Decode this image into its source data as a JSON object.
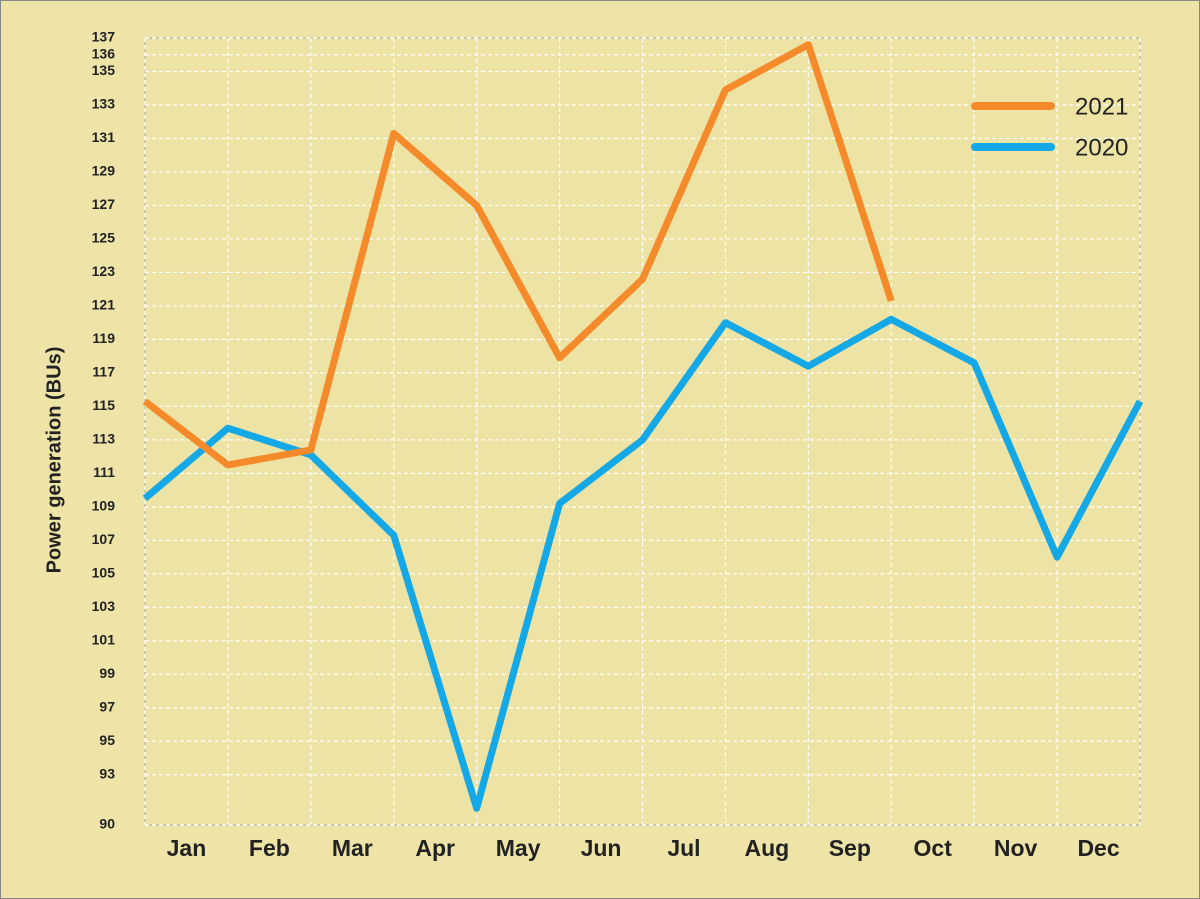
{
  "chart_data": {
    "type": "line",
    "y_label": "Power generation (BUs)",
    "x": [
      0,
      1,
      2,
      3,
      4,
      5,
      6,
      7,
      8,
      9,
      10,
      11,
      12
    ],
    "xlim": [
      0,
      12
    ],
    "xticks": [
      {
        "value": 0.5,
        "label": "Jan"
      },
      {
        "value": 1.5,
        "label": "Feb"
      },
      {
        "value": 2.5,
        "label": "Mar"
      },
      {
        "value": 3.5,
        "label": "Apr"
      },
      {
        "value": 4.5,
        "label": "May"
      },
      {
        "value": 5.5,
        "label": "Jun"
      },
      {
        "value": 6.5,
        "label": "Jul"
      },
      {
        "value": 7.5,
        "label": "Aug"
      },
      {
        "value": 8.5,
        "label": "Sep"
      },
      {
        "value": 9.5,
        "label": "Oct"
      },
      {
        "value": 10.5,
        "label": "Nov"
      },
      {
        "value": 11.5,
        "label": "Dec"
      }
    ],
    "ylim": [
      90,
      137
    ],
    "yticks": [
      90,
      93,
      95,
      97,
      99,
      101,
      103,
      105,
      107,
      109,
      111,
      113,
      115,
      117,
      119,
      121,
      123,
      125,
      127,
      129,
      131,
      133,
      135,
      136,
      137
    ],
    "grid": true,
    "legend": "upper right",
    "series": [
      {
        "name": "2021",
        "color": "#f58a2b",
        "values": [
          115.3,
          111.5,
          112.4,
          131.3,
          127,
          117.9,
          122.6,
          133.9,
          136.6,
          121.3,
          null,
          null,
          null
        ]
      },
      {
        "name": "2020",
        "color": "#14a8e6",
        "values": [
          109.5,
          113.7,
          112.1,
          107.3,
          91,
          109.2,
          113,
          120,
          117.4,
          120.2,
          117.6,
          106,
          115.3
        ]
      }
    ]
  }
}
